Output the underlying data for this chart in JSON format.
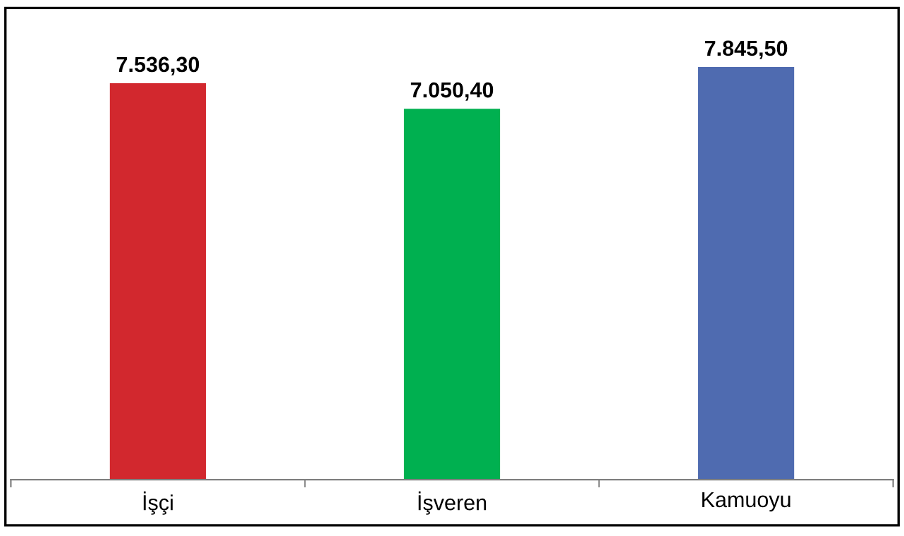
{
  "chart_data": {
    "type": "bar",
    "categories": [
      "İşçi",
      "İşveren",
      "Kamuoyu"
    ],
    "values": [
      7536.3,
      7050.4,
      7845.5
    ],
    "colors": [
      "#d2282e",
      "#00b050",
      "#4f6bb0"
    ],
    "value_labels": [
      "7.536,30",
      "7.050,40",
      "7.845,50"
    ],
    "tick_labels": "x"
  }
}
